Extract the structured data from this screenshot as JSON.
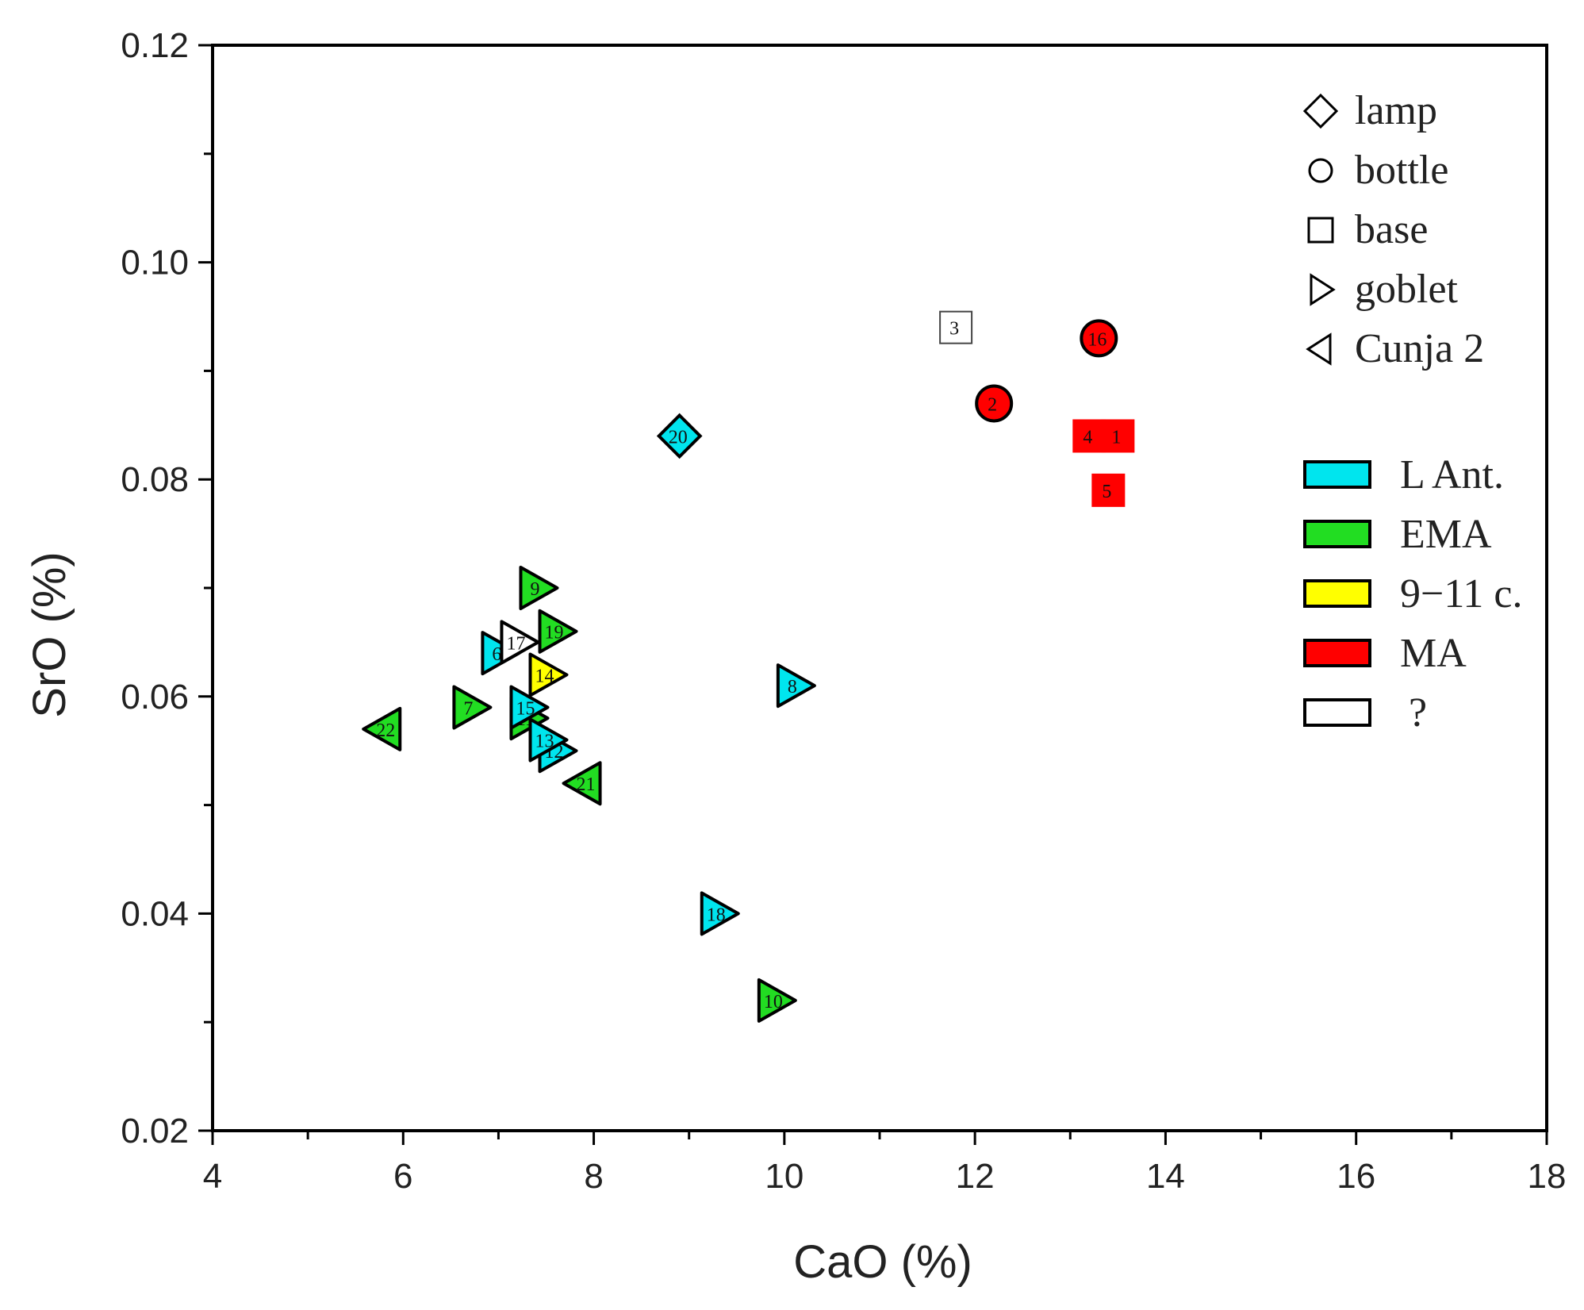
{
  "chart_data": {
    "type": "scatter",
    "title": "",
    "xlabel": "CaO (%)",
    "ylabel": "SrO (%)",
    "xlim": [
      4,
      18
    ],
    "ylim": [
      0.02,
      0.12
    ],
    "x_ticks": [
      "4",
      "6",
      "8",
      "10",
      "12",
      "14",
      "16",
      "18"
    ],
    "y_ticks": [
      "0.02",
      "0.04",
      "0.06",
      "0.08",
      "0.10",
      "0.12"
    ],
    "grid": false,
    "legend_placement": "top-right",
    "shape_legend": [
      {
        "label": "lamp",
        "shape": "diamond"
      },
      {
        "label": "bottle",
        "shape": "circle"
      },
      {
        "label": "base",
        "shape": "square"
      },
      {
        "label": "goblet",
        "shape": "triangle-right"
      },
      {
        "label": "Cunja 2",
        "shape": "triangle-left"
      }
    ],
    "color_legend": [
      {
        "label": "L Ant.",
        "color": "#00e5ee"
      },
      {
        "label": "EMA",
        "color": "#22dd22"
      },
      {
        "label": "9−11 c.",
        "color": "#ffff00"
      },
      {
        "label": "MA",
        "color": "#ff0000"
      },
      {
        "label": "?",
        "color": "#ffffff"
      }
    ],
    "points": [
      {
        "label": "1",
        "x": 13.5,
        "y": 0.084,
        "shape": "square",
        "group": "MA"
      },
      {
        "label": "2",
        "x": 12.2,
        "y": 0.087,
        "shape": "circle",
        "group": "MA"
      },
      {
        "label": "3",
        "x": 11.8,
        "y": 0.094,
        "shape": "square",
        "group": "?"
      },
      {
        "label": "4",
        "x": 13.2,
        "y": 0.084,
        "shape": "square",
        "group": "MA"
      },
      {
        "label": "5",
        "x": 13.4,
        "y": 0.079,
        "shape": "square",
        "group": "MA"
      },
      {
        "label": "6",
        "x": 7.0,
        "y": 0.064,
        "shape": "triangle-right",
        "group": "L Ant."
      },
      {
        "label": "7",
        "x": 6.7,
        "y": 0.059,
        "shape": "triangle-right",
        "group": "EMA"
      },
      {
        "label": "8",
        "x": 10.1,
        "y": 0.061,
        "shape": "triangle-right",
        "group": "L Ant."
      },
      {
        "label": "9",
        "x": 7.4,
        "y": 0.07,
        "shape": "triangle-right",
        "group": "EMA"
      },
      {
        "label": "10",
        "x": 9.9,
        "y": 0.032,
        "shape": "triangle-right",
        "group": "EMA"
      },
      {
        "label": "11",
        "x": 7.3,
        "y": 0.058,
        "shape": "triangle-right",
        "group": "EMA"
      },
      {
        "label": "12",
        "x": 7.6,
        "y": 0.055,
        "shape": "triangle-right",
        "group": "L Ant."
      },
      {
        "label": "13",
        "x": 7.5,
        "y": 0.056,
        "shape": "triangle-right",
        "group": "L Ant."
      },
      {
        "label": "14",
        "x": 7.5,
        "y": 0.062,
        "shape": "triangle-right",
        "group": "9−11 c."
      },
      {
        "label": "15",
        "x": 7.3,
        "y": 0.059,
        "shape": "triangle-right",
        "group": "L Ant."
      },
      {
        "label": "16",
        "x": 13.3,
        "y": 0.093,
        "shape": "circle",
        "group": "MA"
      },
      {
        "label": "17",
        "x": 7.2,
        "y": 0.065,
        "shape": "triangle-right",
        "group": "?"
      },
      {
        "label": "18",
        "x": 9.3,
        "y": 0.04,
        "shape": "triangle-right",
        "group": "L Ant."
      },
      {
        "label": "19",
        "x": 7.6,
        "y": 0.066,
        "shape": "triangle-right",
        "group": "EMA"
      },
      {
        "label": "20",
        "x": 8.9,
        "y": 0.084,
        "shape": "diamond",
        "group": "L Ant."
      },
      {
        "label": "21",
        "x": 7.9,
        "y": 0.052,
        "shape": "triangle-left",
        "group": "EMA"
      },
      {
        "label": "22",
        "x": 5.8,
        "y": 0.057,
        "shape": "triangle-left",
        "group": "EMA"
      }
    ]
  }
}
